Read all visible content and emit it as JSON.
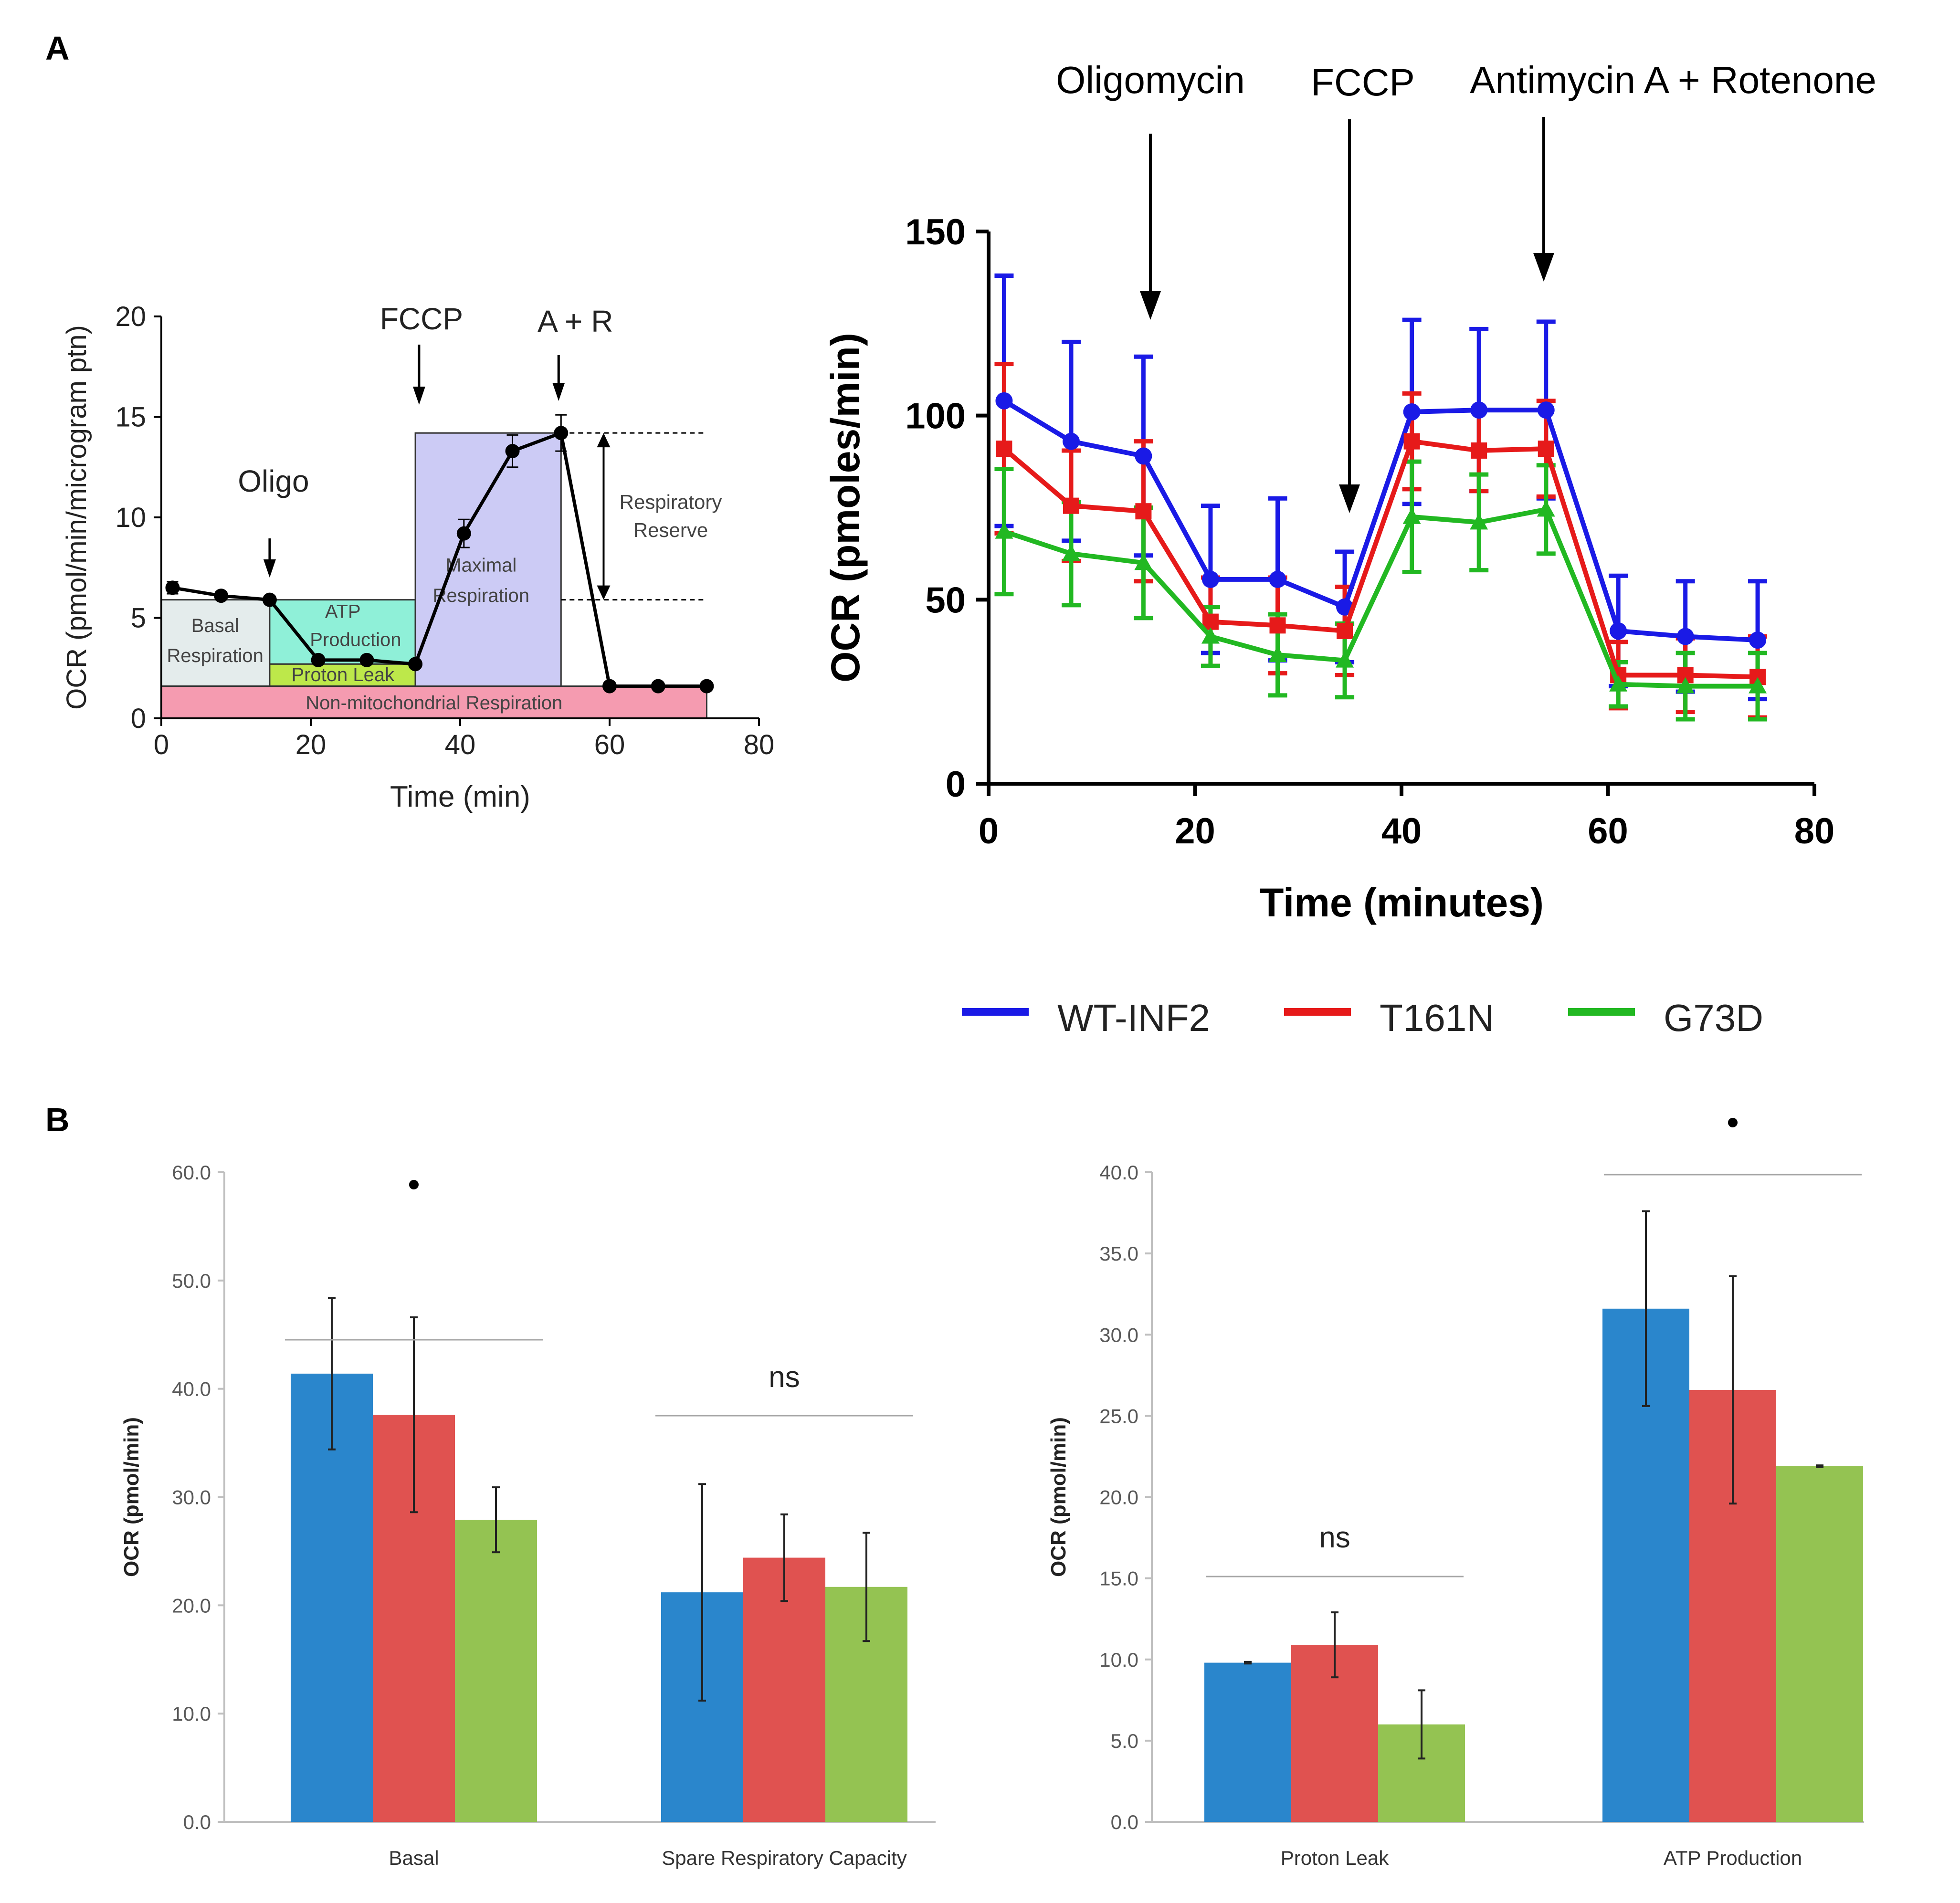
{
  "figure": {
    "panel_a_label": "A",
    "panel_b_label": "B"
  },
  "colors": {
    "wt": "#1a1ae6",
    "t161n": "#e61a1a",
    "g73d": "#22b822",
    "bar_wt": "#2a86cc",
    "bar_t161n": "#e05250",
    "bar_g73d": "#94c352",
    "basal": "#e4ecec",
    "atp": "#8ff0d8",
    "proton": "#bde84a",
    "nonmito": "#f59bb0",
    "maximal": "#cccbf5",
    "schematic_line": "#000000"
  },
  "legend": {
    "items": [
      {
        "label": "WT-INF2",
        "color": "#1a1ae6"
      },
      {
        "label": "T161N",
        "color": "#e61a1a"
      },
      {
        "label": "G73D",
        "color": "#22b822"
      }
    ]
  },
  "chart_data": [
    {
      "id": "schematic",
      "type": "line",
      "title": "",
      "xlabel": "Time (min)",
      "ylabel": "OCR (pmol/min/microgram ptn)",
      "xlim": [
        0,
        80
      ],
      "ylim": [
        0,
        20
      ],
      "xticks": [
        0,
        20,
        40,
        60,
        80
      ],
      "yticks": [
        0,
        5,
        10,
        15,
        20
      ],
      "series": [
        {
          "name": "OCR",
          "x": [
            1.5,
            8,
            14.5,
            21,
            27.5,
            34,
            40.5,
            47,
            53.5,
            60,
            66.5,
            73
          ],
          "y": [
            6.5,
            6.1,
            5.9,
            2.9,
            2.9,
            2.7,
            9.2,
            13.3,
            14.2,
            1.6,
            1.6,
            1.6
          ],
          "err": [
            0.3,
            0.2,
            0.2,
            0.1,
            0.1,
            0.1,
            0.7,
            0.8,
            0.9,
            0.1,
            0.1,
            0.1
          ]
        }
      ],
      "regions": [
        {
          "label": "Basal Respiration",
          "x0": 0,
          "x1": 14.5,
          "y0": 1.6,
          "y1": 5.9,
          "color": "#e4ecec"
        },
        {
          "label": "ATP Production",
          "x0": 14.5,
          "x1": 34,
          "y0": 2.7,
          "y1": 5.9,
          "color": "#8ff0d8"
        },
        {
          "label": "Proton Leak",
          "x0": 14.5,
          "x1": 34,
          "y0": 1.6,
          "y1": 2.7,
          "color": "#bde84a"
        },
        {
          "label": "Non-mitochondrial Respiration",
          "x0": 0,
          "x1": 73,
          "y0": 0,
          "y1": 1.6,
          "color": "#f59bb0"
        },
        {
          "label": "Maximal Respiration",
          "x0": 34,
          "x1": 53.5,
          "y0": 1.6,
          "y1": 14.2,
          "color": "#cccbf5"
        }
      ],
      "reserve": {
        "label": "Respiratory Reserve",
        "y_low": 5.9,
        "y_high": 14.2
      },
      "injections": [
        {
          "label": "Oligo",
          "x": 14.5
        },
        {
          "label": "FCCP",
          "x": 34.5
        },
        {
          "label": "A + R",
          "x": 53.5
        }
      ]
    },
    {
      "id": "timecourse",
      "type": "line",
      "title": "",
      "xlabel": "Time (minutes)",
      "ylabel": "OCR (pmoles/min)",
      "xlim": [
        0,
        80
      ],
      "ylim": [
        0,
        150
      ],
      "xticks": [
        0,
        20,
        40,
        60,
        80
      ],
      "yticks": [
        0,
        50,
        100,
        150
      ],
      "x": [
        1.5,
        8,
        15,
        21.5,
        28,
        34.5,
        41,
        47.5,
        54,
        61,
        67.5,
        74.5
      ],
      "series": [
        {
          "name": "WT-INF2",
          "color": "#1a1ae6",
          "marker": "circle",
          "values": [
            104,
            93,
            89,
            55.5,
            55.5,
            48,
            101,
            101.5,
            101.5,
            41.5,
            40,
            39
          ],
          "err": [
            34,
            27,
            27,
            20,
            22,
            15,
            25,
            22,
            24,
            15,
            15,
            16
          ]
        },
        {
          "name": "T161N",
          "color": "#e61a1a",
          "marker": "square",
          "values": [
            91,
            75.5,
            74,
            44,
            43,
            41.5,
            93,
            90.5,
            91,
            29.5,
            29.5,
            29
          ],
          "err": [
            23,
            15,
            19,
            12,
            13,
            12,
            13,
            11,
            13,
            9,
            10,
            11
          ]
        },
        {
          "name": "G73D",
          "color": "#22b822",
          "marker": "triangle",
          "values": [
            68.5,
            62.5,
            60,
            40,
            35,
            33.5,
            72.5,
            71,
            74.5,
            27,
            26.5,
            26.5
          ],
          "err": [
            17,
            14,
            15,
            8,
            11,
            10,
            15,
            13,
            12,
            6,
            9,
            9
          ]
        }
      ],
      "injections": [
        {
          "label": "Oligomycin",
          "x": 15
        },
        {
          "label": "FCCP",
          "x": 35
        },
        {
          "label": "Antimycin A + Rotenone",
          "x": 54
        }
      ]
    },
    {
      "id": "bars_left",
      "type": "bar",
      "title": "",
      "xlabel": "",
      "ylabel": "OCR (pmol/min)",
      "ylim": [
        0,
        60
      ],
      "yticks": [
        0,
        10,
        20,
        30,
        40,
        50,
        60
      ],
      "ytick_labels": [
        "0.0",
        "10.0",
        "20.0",
        "30.0",
        "40.0",
        "50.0",
        "60.0"
      ],
      "categories": [
        "Basal",
        "Spare Respiratory Capacity"
      ],
      "series": [
        {
          "name": "WT-INF2",
          "values": [
            41.4,
            21.2
          ],
          "err": [
            7.0,
            10.0
          ]
        },
        {
          "name": "T161N",
          "values": [
            37.6,
            24.4
          ],
          "err": [
            9.0,
            4.0
          ]
        },
        {
          "name": "G73D",
          "values": [
            27.9,
            21.7
          ],
          "err": [
            3.0,
            5.0
          ]
        }
      ],
      "significance": [
        "•",
        "ns"
      ]
    },
    {
      "id": "bars_right",
      "type": "bar",
      "title": "",
      "xlabel": "",
      "ylabel": "OCR (pmol/min)",
      "ylim": [
        0,
        40
      ],
      "yticks": [
        0,
        5,
        10,
        15,
        20,
        25,
        30,
        35,
        40
      ],
      "ytick_labels": [
        "0.0",
        "5.0",
        "10.0",
        "15.0",
        "20.0",
        "25.0",
        "30.0",
        "35.0",
        "40.0"
      ],
      "categories": [
        "Proton Leak",
        "ATP Production"
      ],
      "series": [
        {
          "name": "WT-INF2",
          "values": [
            9.8,
            31.6
          ],
          "err": [
            0.05,
            6.0
          ]
        },
        {
          "name": "T161N",
          "values": [
            10.9,
            26.6
          ],
          "err": [
            2.0,
            7.0
          ]
        },
        {
          "name": "G73D",
          "values": [
            6.0,
            21.9
          ],
          "err": [
            2.1,
            0.05
          ]
        }
      ],
      "significance": [
        "ns",
        "•"
      ]
    }
  ]
}
